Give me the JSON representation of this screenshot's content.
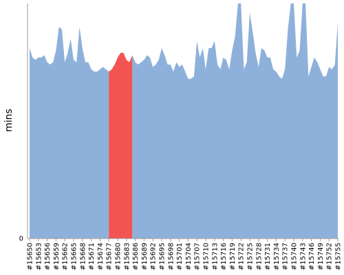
{
  "chart_data": {
    "type": "area",
    "title": "",
    "xlabel": "",
    "ylabel": "mins",
    "ylim": [
      0,
      100
    ],
    "y_ticks": [
      {
        "value": 0,
        "label": "0"
      }
    ],
    "grid": false,
    "legend": "none",
    "x_start": 15650,
    "x_tick_step": 3,
    "x_label_prefix": "#",
    "colors": {
      "normal": "#8eb1db",
      "highlight": "#f25452",
      "axis": "#999999"
    },
    "highlight_range": [
      15677,
      15685
    ],
    "series": [
      {
        "values": [
          81,
          77,
          76,
          77,
          77,
          78,
          75,
          74,
          75,
          80,
          90,
          89,
          75,
          79,
          85,
          76,
          75,
          90,
          81,
          75,
          75,
          72,
          71,
          71,
          72,
          73,
          72,
          71,
          72,
          74,
          77,
          79,
          79,
          76,
          75,
          78,
          75,
          74,
          75,
          76,
          78,
          77,
          73,
          74,
          76,
          81,
          78,
          74,
          74,
          71,
          75,
          73,
          74,
          71,
          68,
          68,
          69,
          84,
          77,
          81,
          72,
          81,
          81,
          84,
          74,
          72,
          77,
          76,
          72,
          80,
          86,
          100,
          100,
          72,
          75,
          96,
          88,
          79,
          73,
          81,
          80,
          77,
          77,
          72,
          71,
          69,
          68,
          72,
          89,
          100,
          100,
          77,
          80,
          100,
          100,
          69,
          73,
          77,
          75,
          72,
          69,
          69,
          73,
          72,
          74,
          92
        ]
      }
    ]
  }
}
